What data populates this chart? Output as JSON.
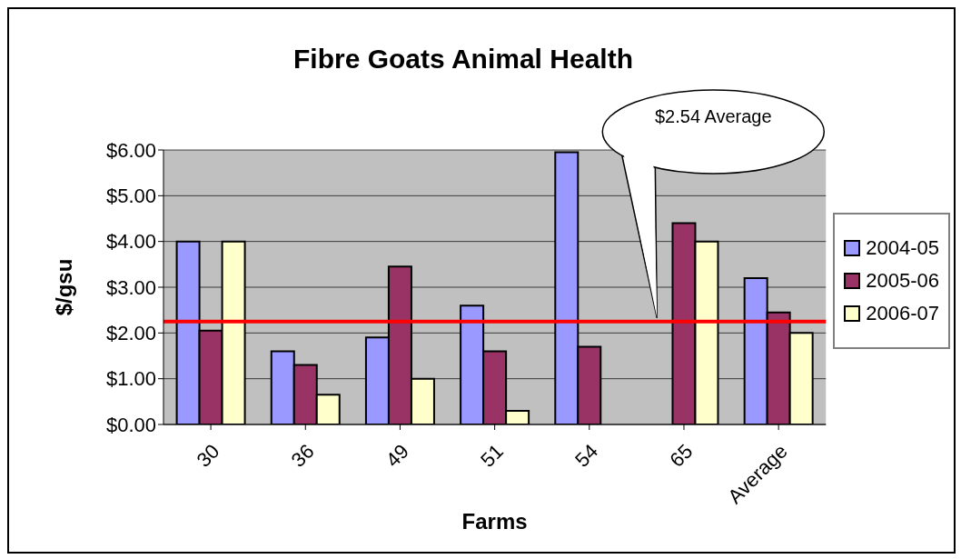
{
  "chart_data": {
    "type": "bar",
    "title": "Fibre Goats Animal Health",
    "xlabel": "Farms",
    "ylabel": "$/gsu",
    "categories": [
      "30",
      "36",
      "49",
      "51",
      "54",
      "65",
      "Average"
    ],
    "series": [
      {
        "name": "2004-05",
        "color": "#9999ff",
        "values": [
          4.0,
          1.6,
          1.9,
          2.6,
          5.95,
          null,
          3.2
        ]
      },
      {
        "name": "2005-06",
        "color": "#993366",
        "values": [
          2.05,
          1.3,
          3.45,
          1.6,
          1.7,
          4.4,
          2.45
        ]
      },
      {
        "name": "2006-07",
        "color": "#ffffcc",
        "values": [
          4.0,
          0.65,
          1.0,
          0.3,
          null,
          4.0,
          2.0
        ]
      }
    ],
    "ylim": [
      0,
      6
    ],
    "yticks": [
      {
        "value": 0,
        "label": "$0.00"
      },
      {
        "value": 1,
        "label": "$1.00"
      },
      {
        "value": 2,
        "label": "$2.00"
      },
      {
        "value": 3,
        "label": "$3.00"
      },
      {
        "value": 4,
        "label": "$4.00"
      },
      {
        "value": 5,
        "label": "$5.00"
      },
      {
        "value": 6,
        "label": "$6.00"
      }
    ],
    "grid": "y",
    "legend": "right",
    "ref_lines": [
      {
        "axis": "y",
        "value": 2.25,
        "label": "$2.54 Average",
        "color": "#ff0000"
      }
    ]
  }
}
